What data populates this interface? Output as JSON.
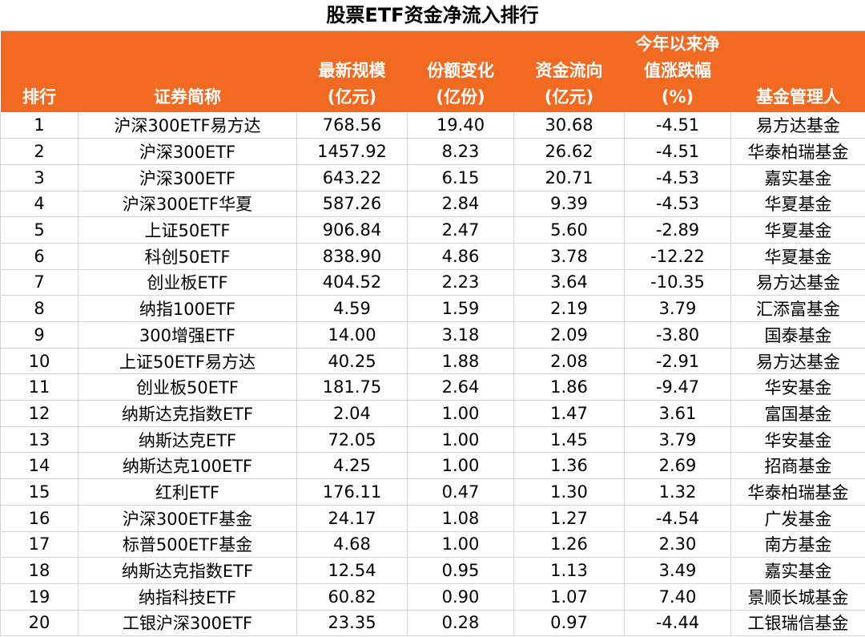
{
  "title": "股票ETF资金净流入排行",
  "headers": [
    [
      "排行"
    ],
    [
      "证券简称"
    ],
    [
      "最新规模",
      "(亿元)"
    ],
    [
      "份额变化",
      "(亿份)"
    ],
    [
      "资金流向",
      "(亿元)"
    ],
    [
      "今年以来净",
      "值涨跌幅",
      "(%)"
    ],
    [
      "基金管理人"
    ]
  ],
  "rows": [
    [
      "1",
      "沪深300ETF易方达",
      "768.56",
      "19.40",
      "30.68",
      "-4.51",
      "易方达基金"
    ],
    [
      "2",
      "沪深300ETF",
      "1457.92",
      "8.23",
      "26.62",
      "-4.51",
      "华泰柏瑞基金"
    ],
    [
      "3",
      "沪深300ETF",
      "643.22",
      "6.15",
      "20.71",
      "-4.53",
      "嘉实基金"
    ],
    [
      "4",
      "沪深300ETF华夏",
      "587.26",
      "2.84",
      "9.39",
      "-4.53",
      "华夏基金"
    ],
    [
      "5",
      "上证50ETF",
      "906.84",
      "2.47",
      "5.60",
      "-2.89",
      "华夏基金"
    ],
    [
      "6",
      "科创50ETF",
      "838.90",
      "4.86",
      "3.78",
      "-12.22",
      "华夏基金"
    ],
    [
      "7",
      "创业板ETF",
      "404.52",
      "2.23",
      "3.64",
      "-10.35",
      "易方达基金"
    ],
    [
      "8",
      "纳指100ETF",
      "4.59",
      "1.59",
      "2.19",
      "3.79",
      "汇添富基金"
    ],
    [
      "9",
      "300增强ETF",
      "14.00",
      "3.18",
      "2.09",
      "-3.80",
      "国泰基金"
    ],
    [
      "10",
      "上证50ETF易方达",
      "40.25",
      "1.88",
      "2.08",
      "-2.91",
      "易方达基金"
    ],
    [
      "11",
      "创业板50ETF",
      "181.75",
      "2.64",
      "1.86",
      "-9.47",
      "华安基金"
    ],
    [
      "12",
      "纳斯达克指数ETF",
      "2.04",
      "1.00",
      "1.47",
      "3.61",
      "富国基金"
    ],
    [
      "13",
      "纳斯达克ETF",
      "72.05",
      "1.00",
      "1.45",
      "3.79",
      "华安基金"
    ],
    [
      "14",
      "纳斯达克100ETF",
      "4.25",
      "1.00",
      "1.36",
      "2.69",
      "招商基金"
    ],
    [
      "15",
      "红利ETF",
      "176.11",
      "0.47",
      "1.30",
      "1.32",
      "华泰柏瑞基金"
    ],
    [
      "16",
      "沪深300ETF基金",
      "24.17",
      "1.08",
      "1.27",
      "-4.54",
      "广发基金"
    ],
    [
      "17",
      "标普500ETF基金",
      "4.68",
      "1.00",
      "1.26",
      "2.30",
      "南方基金"
    ],
    [
      "18",
      "纳斯达克指数ETF",
      "12.54",
      "0.95",
      "1.13",
      "3.49",
      "嘉实基金"
    ],
    [
      "19",
      "纳指科技ETF",
      "60.82",
      "0.90",
      "1.07",
      "7.40",
      "景顺长城基金"
    ],
    [
      "20",
      "工银沪深300ETF",
      "23.35",
      "0.28",
      "0.97",
      "-4.44",
      "工银瑞信基金"
    ]
  ],
  "colors": {
    "header_bg": "#f26a21",
    "header_text": "#ffffff",
    "grid": "#d4d4d4"
  }
}
